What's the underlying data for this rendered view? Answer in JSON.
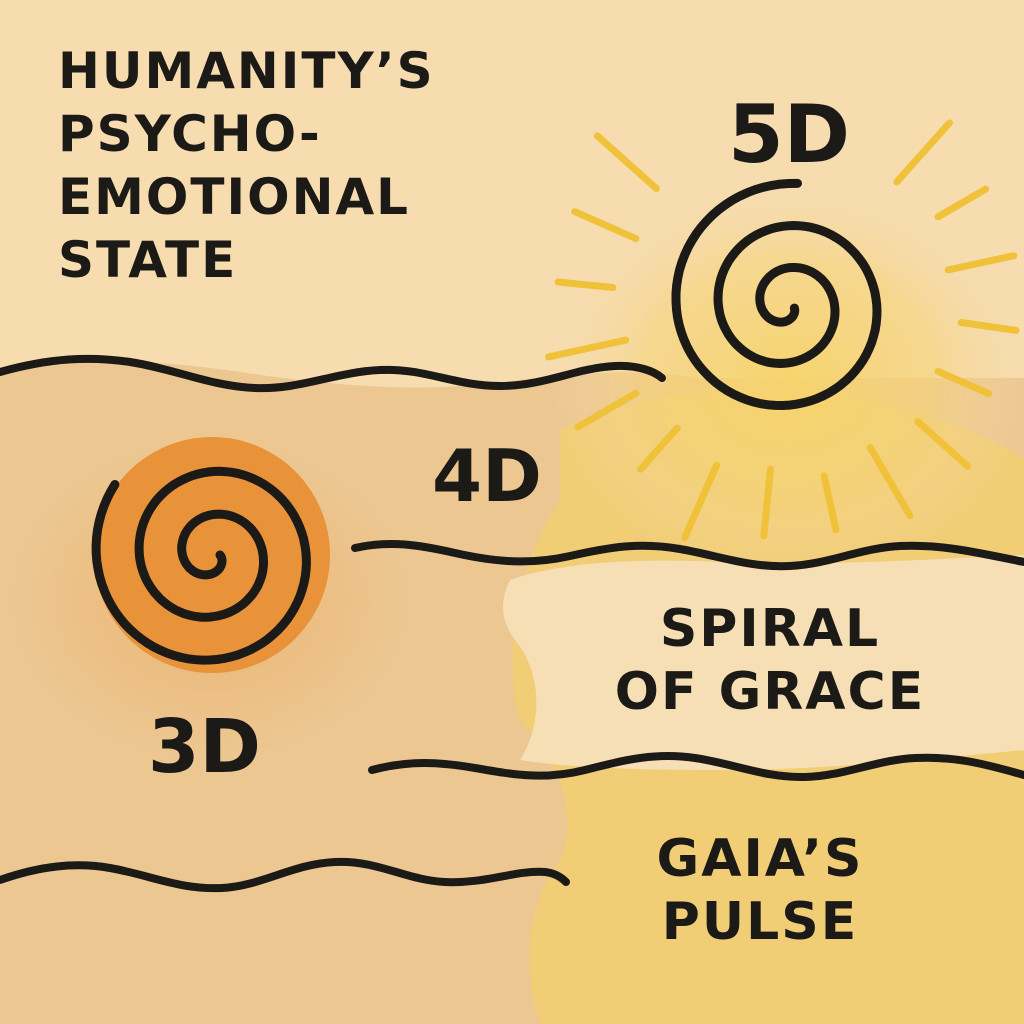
{
  "diagram": {
    "title_lines": [
      "HUMANITY’S",
      "PSYCHO-",
      "EMOTIONAL",
      "STATE"
    ],
    "levels": {
      "d5": "5D",
      "d4": "4D",
      "d3": "3D"
    },
    "spiral_of_grace_lines": [
      "SPIRAL",
      "OF GRACE"
    ],
    "gaias_pulse_lines": [
      "GAIA’S",
      "PULSE"
    ]
  },
  "colors": {
    "background_top": "#f6dcae",
    "background_middle": "#ecc792",
    "cream_band": "#f6dfb5",
    "yellow_glow": "#f4cd62",
    "sun_rays": "#f0c23a",
    "orange_spiral": "#e8923a",
    "ink": "#1c1a17"
  }
}
